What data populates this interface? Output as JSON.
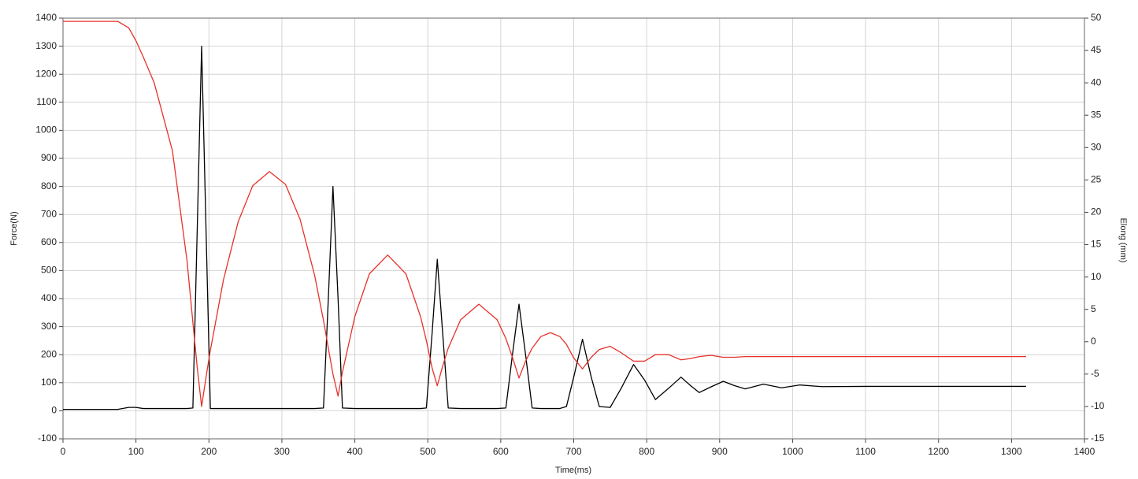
{
  "chart_data": {
    "type": "line",
    "x_label": "Time(ms)",
    "y_label": "Force(N)",
    "y2_label": "Elong (mm)",
    "x": [
      0,
      75,
      90,
      100,
      110,
      125,
      150,
      170,
      178,
      184,
      190,
      196,
      202,
      220,
      240,
      260,
      283,
      305,
      325,
      345,
      357,
      364,
      370,
      377,
      383,
      400,
      420,
      445,
      470,
      490,
      498,
      506,
      513,
      520,
      528,
      545,
      570,
      595,
      607,
      616,
      625,
      634,
      643,
      655,
      668,
      681,
      690,
      700,
      712,
      724,
      735,
      750,
      765,
      782,
      797,
      812,
      830,
      847,
      860,
      872,
      888,
      905,
      920,
      935,
      960,
      985,
      1010,
      1040,
      1100,
      1200,
      1320
    ],
    "series": [
      {
        "color": "#000000",
        "axis": "y",
        "values": [
          5,
          5,
          12,
          12,
          8,
          8,
          8,
          8,
          10,
          650,
          1300,
          650,
          8,
          8,
          8,
          8,
          8,
          8,
          8,
          8,
          10,
          420,
          800,
          400,
          10,
          8,
          8,
          8,
          8,
          8,
          10,
          280,
          540,
          290,
          10,
          8,
          8,
          8,
          10,
          200,
          380,
          200,
          10,
          8,
          8,
          8,
          15,
          120,
          255,
          120,
          15,
          12,
          80,
          165,
          110,
          40,
          80,
          120,
          90,
          65,
          85,
          105,
          90,
          78,
          95,
          82,
          92,
          86,
          87,
          87,
          87
        ]
      },
      {
        "color": "#e8312a",
        "axis": "y2",
        "values": [
          49.5,
          49.5,
          48.5,
          46.5,
          44,
          40,
          29.5,
          12.5,
          3,
          -4,
          -10,
          -5.5,
          -1.3,
          9.6,
          18.5,
          24.1,
          26.3,
          24.3,
          18.9,
          10.2,
          3.3,
          -1.2,
          -5,
          -8.4,
          -4.7,
          3.9,
          10.5,
          13.4,
          10.5,
          3.9,
          0.2,
          -4.1,
          -6.8,
          -3.9,
          -1.0,
          3.4,
          5.8,
          3.4,
          0.5,
          -2.4,
          -5.6,
          -3.0,
          -1.0,
          0.8,
          1.4,
          0.8,
          -0.4,
          -2.5,
          -4.2,
          -2.4,
          -1.2,
          -0.7,
          -1.7,
          -3.0,
          -3.0,
          -2.0,
          -2.0,
          -2.8,
          -2.6,
          -2.3,
          -2.1,
          -2.4,
          -2.4,
          -2.3,
          -2.3,
          -2.3,
          -2.3,
          -2.3,
          -2.3,
          -2.3,
          -2.3
        ]
      }
    ],
    "xlim": [
      0,
      1400
    ],
    "xticks": [
      0,
      100,
      200,
      300,
      400,
      500,
      600,
      700,
      800,
      900,
      1000,
      1100,
      1200,
      1300,
      1400
    ],
    "ylim": [
      -100,
      1400
    ],
    "yticks": [
      -100,
      0,
      100,
      200,
      300,
      400,
      500,
      600,
      700,
      800,
      900,
      1000,
      1100,
      1200,
      1300,
      1400
    ],
    "y2lim": [
      -15,
      50
    ],
    "y2ticks": [
      -15,
      -10,
      -5,
      0,
      5,
      10,
      15,
      20,
      25,
      30,
      35,
      40,
      45,
      50
    ],
    "grid": true
  }
}
